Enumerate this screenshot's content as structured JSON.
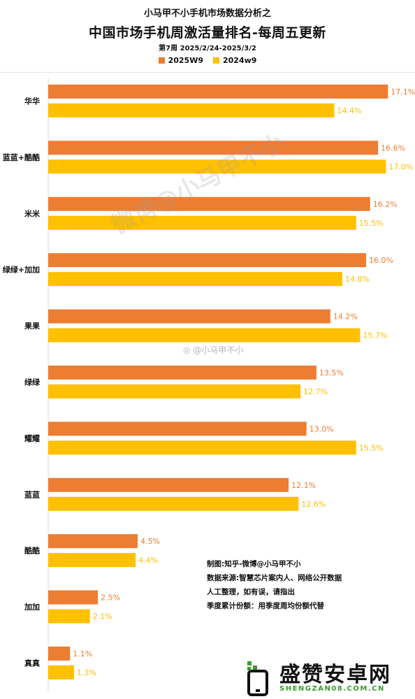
{
  "header": {
    "supertitle": "小马甲不小手机市场数据分析之",
    "title": "中国市场手机周激活量排名-每周五更新",
    "subtitle": "第7周 2025/2/24-2025/3/2"
  },
  "colors": {
    "series_2025": "#ED7D31",
    "series_2024": "#FFC000"
  },
  "chart_data": {
    "type": "bar",
    "orientation": "horizontal",
    "categories": [
      "华华",
      "蓝蓝+酷酷",
      "米米",
      "绿绿+加加",
      "果果",
      "绿绿",
      "耀耀",
      "蓝蓝",
      "酷酷",
      "加加",
      "真真"
    ],
    "series": [
      {
        "name": "2025W9",
        "values": [
          17.1,
          16.6,
          16.2,
          16.0,
          14.2,
          13.5,
          13.0,
          12.1,
          4.5,
          2.5,
          1.1
        ],
        "labels": [
          "17.1%",
          "16.6%",
          "16.2%",
          "16.0%",
          "14.2%",
          "13.5%",
          "13.0%",
          "12.1%",
          "4.5%",
          "2.5%",
          "1.1%"
        ]
      },
      {
        "name": "2024w9",
        "values": [
          14.4,
          17.0,
          15.5,
          14.8,
          15.7,
          12.7,
          15.5,
          12.6,
          4.4,
          2.1,
          1.3
        ],
        "labels": [
          "14.4%",
          "17.0%",
          "15.5%",
          "14.8%",
          "15.7%",
          "12.7%",
          "15.5%",
          "12.6%",
          "4.4%",
          "2.1%",
          "1.3%"
        ]
      }
    ],
    "value_unit": "%",
    "xlim": [
      0,
      17.3
    ],
    "legend": "top-center",
    "grid": false
  },
  "notes": [
    "制图:知乎-微博@小马甲不小",
    "数据来源:智慧芯片案内人、网络公开数据",
    "人工整理，如有误，请指出",
    "季度累计份额：用季度周均份额代替"
  ],
  "watermarks": {
    "diagonal": "微博@小马甲不小",
    "weibo": "@小马甲不小"
  },
  "logo": {
    "name": "盛赞安卓网",
    "url": "SHENGZAN08.COM.CN"
  }
}
